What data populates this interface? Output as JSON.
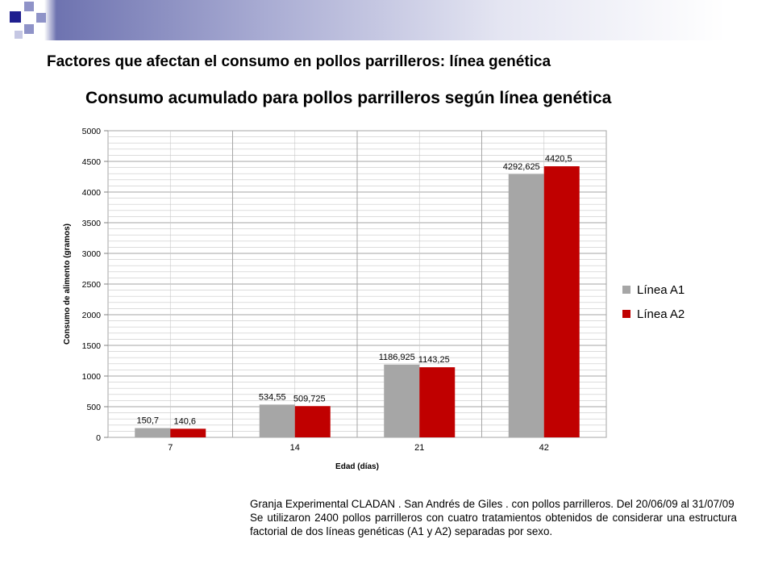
{
  "slide": {
    "title": "Factores que afectan el consumo en pollos parrilleros: línea genética"
  },
  "note": {
    "line1": "Granja Experimental CLADAN . San Andrés de Giles . con pollos parrilleros. Del 20/06/09 al 31/07/09",
    "line2": "Se utilizaron 2400 pollos parrilleros con cuatro tratamientos obtenidos de considerar una estructura factorial de dos líneas genéticas (A1 y A2) separadas por sexo."
  },
  "colors": {
    "series_a1": "#a6a6a6",
    "series_a2": "#c00000",
    "grid": "#a6a6a6",
    "band_dark": "#1f1f8f",
    "band_light": "#8f93c8"
  },
  "chart_data": {
    "type": "bar",
    "title": "Consumo acumulado para pollos parrilleros según línea genética",
    "xlabel": "Edad (días)",
    "ylabel": "Consumo de alimento (gramos)",
    "categories": [
      "7",
      "14",
      "21",
      "42"
    ],
    "series": [
      {
        "name": "Línea A1",
        "values": [
          150.7,
          534.55,
          1186.925,
          4292.625
        ],
        "labels": [
          "150,7",
          "534,55",
          "1186,925",
          "4292,625"
        ]
      },
      {
        "name": "Línea A2",
        "values": [
          140.6,
          509.725,
          1143.25,
          4420.5
        ],
        "labels": [
          "140,6",
          "509,725",
          "1143,25",
          "4420,5"
        ]
      }
    ],
    "ylim": [
      0,
      5000
    ],
    "yticks": [
      0,
      500,
      1000,
      1500,
      2000,
      2500,
      3000,
      3500,
      4000,
      4500,
      5000
    ],
    "grid": true,
    "legend_position": "right"
  }
}
